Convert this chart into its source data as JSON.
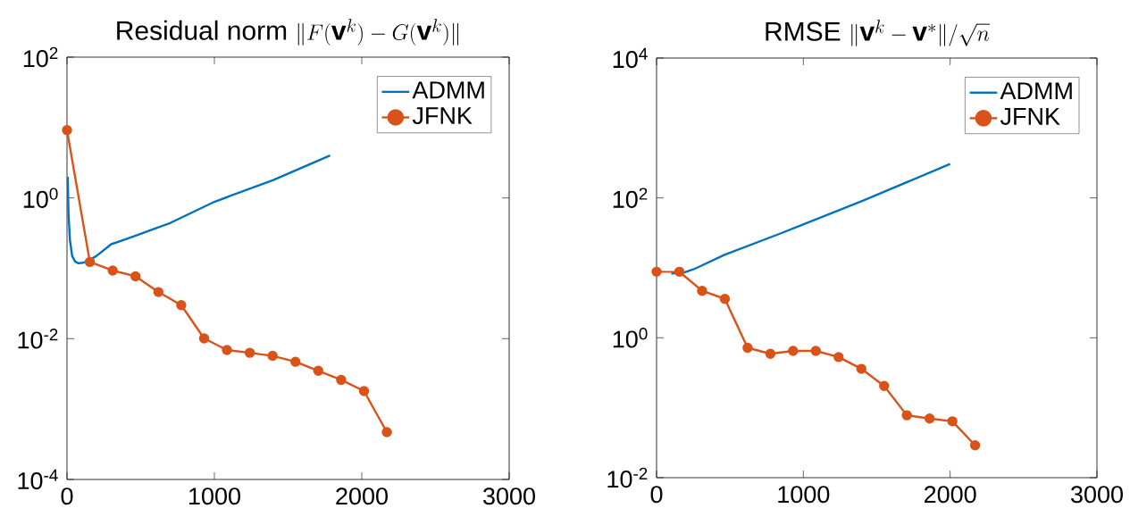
{
  "chart_data": [
    {
      "type": "line",
      "title": "\\mathrm{Residual\\ norm}\\ \\|F(\\mathbf{v}^k) - G(\\mathbf{v}^k)\\|",
      "xlim": [
        0,
        3000
      ],
      "xticks": [
        0,
        1000,
        2000,
        3000
      ],
      "ylim": [
        0.0001,
        100
      ],
      "yticks": [
        {
          "value": 0.0001,
          "label": "10$^{-4}$"
        },
        {
          "value": 0.01,
          "label": "10$^{-2}$"
        },
        {
          "value": 1,
          "label": "10$^{0}$"
        },
        {
          "value": 100,
          "label": "10$^{2}$"
        }
      ],
      "log": "y",
      "legend": "top right",
      "line_style": "solid",
      "series": [
        {
          "name": "ADMM",
          "color": "#0072bd",
          "marker": "none",
          "x": [
            5,
            10,
            20,
            35,
            55,
            75,
            110,
            150,
            200,
            300,
            400,
            500,
            700,
            1000,
            1400,
            1785
          ],
          "values": [
            2,
            0.6,
            0.25,
            0.15,
            0.125,
            0.118,
            0.12,
            0.13,
            0.15,
            0.22,
            0.26,
            0.31,
            0.44,
            0.88,
            1.8,
            4
          ]
        },
        {
          "name": "JFNK",
          "color": "#d95319",
          "marker": "circle",
          "x": [
            0,
            155,
            310,
            465,
            620,
            775,
            930,
            1085,
            1240,
            1395,
            1550,
            1705,
            1860,
            2015,
            2170
          ],
          "values": [
            9.2,
            0.123,
            0.093,
            0.077,
            0.046,
            0.03,
            0.0101,
            0.0069,
            0.0063,
            0.0057,
            0.0047,
            0.0035,
            0.0026,
            0.0018,
            0.00047
          ]
        }
      ]
    },
    {
      "type": "line",
      "title": "\\mathrm{RMSE}\\ \\|\\mathbf{v}^k - \\mathbf{v}^*\\|/\\sqrt{n}",
      "xlim": [
        0,
        3000
      ],
      "xticks": [
        0,
        1000,
        2000,
        3000
      ],
      "ylim": [
        0.01,
        10000
      ],
      "yticks": [
        {
          "value": 0.01,
          "label": "10$^{-2}$"
        },
        {
          "value": 1,
          "label": "10$^{0}$"
        },
        {
          "value": 100,
          "label": "10$^{2}$"
        },
        {
          "value": 10000,
          "label": "10$^{4}$"
        }
      ],
      "log": "y",
      "legend": "top right",
      "line_style": "solid",
      "series": [
        {
          "name": "ADMM",
          "color": "#0072bd",
          "marker": "none",
          "x": [
            100,
            180,
            250,
            300,
            463,
            844,
            1404,
            2000
          ],
          "values": [
            8.3,
            8.5,
            9.5,
            10.6,
            15.4,
            31,
            91,
            306
          ]
        },
        {
          "name": "JFNK",
          "color": "#d95319",
          "marker": "circle",
          "x": [
            0,
            155,
            310,
            465,
            620,
            775,
            930,
            1085,
            1240,
            1395,
            1550,
            1705,
            1860,
            2015,
            2170
          ],
          "values": [
            8.8,
            8.8,
            4.7,
            3.6,
            0.72,
            0.59,
            0.65,
            0.65,
            0.53,
            0.36,
            0.205,
            0.078,
            0.07,
            0.064,
            0.029
          ]
        }
      ]
    }
  ]
}
